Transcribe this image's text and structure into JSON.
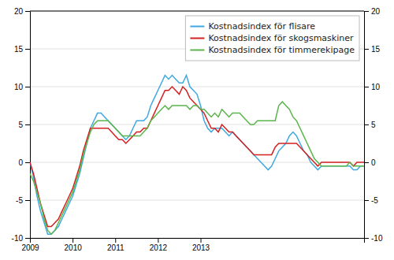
{
  "chart_data": {
    "type": "line",
    "categories": [
      "2009",
      null,
      null,
      null,
      null,
      null,
      null,
      null,
      null,
      null,
      null,
      null,
      "2010",
      null,
      null,
      null,
      null,
      null,
      null,
      null,
      null,
      null,
      null,
      null,
      "2011",
      null,
      null,
      null,
      null,
      null,
      null,
      null,
      null,
      null,
      null,
      null,
      "2012",
      null,
      null,
      null,
      null,
      null,
      null,
      null,
      null,
      null,
      null,
      null,
      "2013",
      null,
      null,
      null,
      null,
      null,
      null,
      null,
      null,
      null,
      null,
      null,
      null,
      null,
      null,
      null,
      null,
      null,
      null,
      null,
      null,
      null,
      null,
      null,
      null,
      null,
      null,
      null,
      null,
      null,
      null,
      null,
      null,
      null,
      null,
      null,
      null,
      null,
      null,
      null,
      null,
      null,
      null,
      null,
      null,
      null,
      null
    ],
    "series": [
      {
        "name": "Kostnadsindex för flisare",
        "color": "#3fa8e0",
        "values": [
          0.0,
          -2.0,
          -4.5,
          -6.5,
          -8.0,
          -9.5,
          -9.5,
          -9.0,
          -8.5,
          -7.5,
          -6.5,
          -5.5,
          -4.5,
          -3.0,
          -1.5,
          0.5,
          2.5,
          4.5,
          5.5,
          6.5,
          6.5,
          6.0,
          5.5,
          5.0,
          4.5,
          4.0,
          3.5,
          3.0,
          3.5,
          4.5,
          5.5,
          5.5,
          5.5,
          6.0,
          7.5,
          8.5,
          9.5,
          10.5,
          11.5,
          11.0,
          11.5,
          11.0,
          10.5,
          10.5,
          11.5,
          10.0,
          9.5,
          9.0,
          7.5,
          5.5,
          4.5,
          4.0,
          4.5,
          4.5,
          4.5,
          4.0,
          3.5,
          4.0,
          3.5,
          3.0,
          2.5,
          2.0,
          1.5,
          1.0,
          0.5,
          0.0,
          -0.5,
          -1.0,
          -0.5,
          0.5,
          1.5,
          2.0,
          2.5,
          3.5,
          4.0,
          3.5,
          2.5,
          1.5,
          1.0,
          0.0,
          -0.5,
          -1.0,
          -0.5,
          -0.5,
          -0.5,
          -0.5,
          -0.5,
          -0.5,
          -0.5,
          -0.5,
          -0.5,
          -1.0,
          -1.0,
          -0.5,
          -0.5
        ]
      },
      {
        "name": "Kostnadsindex för skogsmaskiner",
        "color": "#d42020",
        "values": [
          0.0,
          -1.5,
          -3.5,
          -5.5,
          -7.0,
          -8.5,
          -8.5,
          -8.0,
          -7.5,
          -6.5,
          -5.5,
          -4.5,
          -3.5,
          -2.0,
          -0.5,
          1.5,
          3.0,
          4.5,
          4.5,
          4.5,
          4.5,
          4.5,
          4.5,
          4.0,
          3.5,
          3.0,
          3.0,
          2.5,
          3.0,
          3.5,
          4.0,
          4.0,
          4.5,
          4.5,
          5.5,
          6.5,
          7.5,
          8.5,
          9.5,
          9.5,
          10.0,
          9.5,
          9.0,
          10.0,
          9.5,
          8.5,
          8.0,
          7.5,
          7.0,
          6.5,
          5.5,
          4.5,
          4.5,
          4.0,
          5.0,
          4.5,
          4.0,
          4.0,
          3.5,
          3.0,
          2.5,
          2.0,
          1.5,
          1.0,
          1.0,
          1.0,
          1.0,
          1.0,
          1.0,
          2.0,
          2.5,
          2.5,
          2.5,
          2.5,
          2.5,
          2.5,
          2.0,
          1.5,
          1.0,
          0.5,
          0.0,
          -0.5,
          0.0,
          0.0,
          0.0,
          0.0,
          0.0,
          0.0,
          0.0,
          0.0,
          0.0,
          -0.5,
          0.0,
          0.0,
          0.0
        ]
      },
      {
        "name": "Kostnadsindex för timmerekipage",
        "color": "#5ab54b",
        "values": [
          -1.5,
          -2.5,
          -4.0,
          -5.5,
          -7.5,
          -9.0,
          -9.5,
          -9.0,
          -8.0,
          -7.0,
          -6.0,
          -5.0,
          -4.0,
          -2.5,
          -1.0,
          1.0,
          2.5,
          4.0,
          5.0,
          5.5,
          5.5,
          5.5,
          5.5,
          5.0,
          4.5,
          4.0,
          3.5,
          3.5,
          3.5,
          3.5,
          3.5,
          3.5,
          4.0,
          4.5,
          5.5,
          6.0,
          6.5,
          7.0,
          7.5,
          7.0,
          7.5,
          7.5,
          7.5,
          7.5,
          7.5,
          7.0,
          7.5,
          7.5,
          7.0,
          7.0,
          6.5,
          6.0,
          6.5,
          6.0,
          7.0,
          6.5,
          6.0,
          6.5,
          6.5,
          6.5,
          6.0,
          5.5,
          5.0,
          5.0,
          5.5,
          5.5,
          5.5,
          5.5,
          5.5,
          5.5,
          7.5,
          8.0,
          7.5,
          7.0,
          6.0,
          5.5,
          4.5,
          3.5,
          2.5,
          1.5,
          0.5,
          0.0,
          -0.5,
          -0.5,
          -0.5,
          -0.5,
          -0.5,
          -0.5,
          -0.5,
          -0.5,
          0.0,
          -0.5,
          -0.5,
          -0.5,
          -0.5
        ]
      }
    ],
    "ylim": [
      -10,
      20
    ],
    "yticks": [
      -10,
      -5,
      0,
      5,
      10,
      15,
      20
    ],
    "y2lim": [
      -10,
      20
    ],
    "y2ticks": [
      -10,
      -5,
      0,
      5,
      10,
      15,
      20
    ],
    "grid": true,
    "legend": "top-right"
  }
}
